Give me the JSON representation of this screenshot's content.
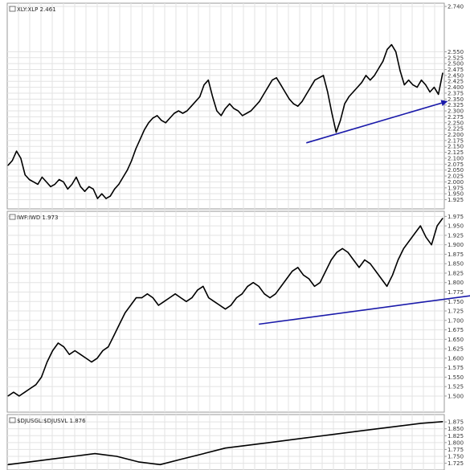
{
  "colors": {
    "background": "#ffffff",
    "grid": "#e3e3e3",
    "frame": "#9a9a9a",
    "price_line": "#000000",
    "trend_arrow": "#1a1aaa"
  },
  "chart_data": [
    {
      "type": "line",
      "title": "XLY:XLP 2.461",
      "ylim": [
        1.92,
        2.755
      ],
      "yticks": [
        "1.925",
        "1.950",
        "1.975",
        "2.000",
        "2.025",
        "2.050",
        "2.075",
        "2.100",
        "2.125",
        "2.150",
        "2.175",
        "2.200",
        "2.225",
        "2.250",
        "2.275",
        "2.300",
        "2.325",
        "2.350",
        "2.375",
        "2.400",
        "2.425",
        "2.450",
        "2.475",
        "2.500",
        "2.525",
        "2.550",
        "2.740"
      ],
      "series": [
        {
          "values": [
            2.07,
            2.09,
            2.13,
            2.1,
            2.03,
            2.01,
            2.0,
            1.99,
            2.02,
            2.0,
            1.98,
            1.99,
            2.01,
            2.0,
            1.97,
            1.99,
            2.02,
            1.98,
            1.96,
            1.98,
            1.97,
            1.93,
            1.95,
            1.93,
            1.94,
            1.97,
            1.99,
            2.02,
            2.05,
            2.09,
            2.14,
            2.18,
            2.22,
            2.25,
            2.27,
            2.28,
            2.26,
            2.25,
            2.27,
            2.29,
            2.3,
            2.29,
            2.3,
            2.32,
            2.34,
            2.36,
            2.41,
            2.43,
            2.36,
            2.3,
            2.28,
            2.31,
            2.33,
            2.31,
            2.3,
            2.28,
            2.29,
            2.3,
            2.32,
            2.34,
            2.37,
            2.4,
            2.43,
            2.44,
            2.41,
            2.38,
            2.35,
            2.33,
            2.32,
            2.34,
            2.37,
            2.4,
            2.43,
            2.44,
            2.45,
            2.38,
            2.29,
            2.21,
            2.26,
            2.33,
            2.36,
            2.38,
            2.4,
            2.42,
            2.45,
            2.43,
            2.45,
            2.48,
            2.51,
            2.56,
            2.58,
            2.55,
            2.47,
            2.41,
            2.43,
            2.41,
            2.4,
            2.43,
            2.41,
            2.38,
            2.4,
            2.37,
            2.46
          ]
        }
      ],
      "trend_arrow": {
        "start": [
          70,
          2.165
        ],
        "end": [
          103,
          2.34
        ]
      }
    },
    {
      "type": "line",
      "title": "IWF:IWD 1.973",
      "ylim": [
        1.485,
        1.98
      ],
      "yticks": [
        "1.500",
        "1.525",
        "1.550",
        "1.575",
        "1.600",
        "1.625",
        "1.650",
        "1.675",
        "1.700",
        "1.725",
        "1.750",
        "1.775",
        "1.800",
        "1.825",
        "1.850",
        "1.875",
        "1.900",
        "1.925",
        "1.950",
        "1.975"
      ],
      "series": [
        {
          "values": [
            1.5,
            1.51,
            1.5,
            1.51,
            1.52,
            1.53,
            1.55,
            1.59,
            1.62,
            1.64,
            1.63,
            1.61,
            1.62,
            1.61,
            1.6,
            1.59,
            1.6,
            1.62,
            1.63,
            1.66,
            1.69,
            1.72,
            1.74,
            1.76,
            1.76,
            1.77,
            1.76,
            1.74,
            1.75,
            1.76,
            1.77,
            1.76,
            1.75,
            1.76,
            1.78,
            1.79,
            1.76,
            1.75,
            1.74,
            1.73,
            1.74,
            1.76,
            1.77,
            1.79,
            1.8,
            1.79,
            1.77,
            1.76,
            1.77,
            1.79,
            1.81,
            1.83,
            1.84,
            1.82,
            1.81,
            1.79,
            1.8,
            1.83,
            1.86,
            1.88,
            1.89,
            1.88,
            1.86,
            1.84,
            1.86,
            1.85,
            1.83,
            1.81,
            1.79,
            1.82,
            1.86,
            1.89,
            1.91,
            1.93,
            1.95,
            1.92,
            1.9,
            1.95,
            1.97
          ]
        }
      ],
      "trend_arrow": {
        "start": [
          45,
          1.69
        ],
        "end": [
          103,
          1.805
        ]
      }
    },
    {
      "type": "line",
      "title": "$DJUSGL:$DJUSVL 1.876",
      "ylim": [
        1.715,
        1.89
      ],
      "yticks": [
        "1.725",
        "1.750",
        "1.775",
        "1.800",
        "1.825",
        "1.850",
        "1.875"
      ],
      "series": [
        {
          "values": [
            1.72,
            1.73,
            1.74,
            1.75,
            1.76,
            1.75,
            1.73,
            1.72,
            1.74,
            1.76,
            1.78,
            1.79,
            1.8,
            1.81,
            1.82,
            1.83,
            1.84,
            1.85,
            1.86,
            1.87,
            1.876
          ]
        }
      ]
    }
  ]
}
